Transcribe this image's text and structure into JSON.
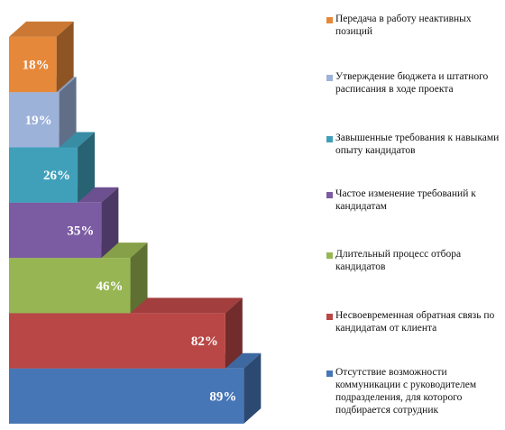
{
  "chart_data": {
    "type": "bar",
    "orientation": "horizontal",
    "style": "3d-stacked-pyramid",
    "title": "",
    "xlabel": "",
    "ylabel": "",
    "xlim": [
      0,
      100
    ],
    "grid": false,
    "legend_position": "right",
    "categories": [
      "Передача в работу неактивных позиций",
      "Утверждение бюджета и штатного расписания в ходе проекта",
      "Завышенные требования к навыками опыту кандидатов",
      "Частое изменение требований к кандидатам",
      "Длительный процесс отбора кандидатов",
      "Несвоевременная обратная связь по кандидатам от клиента",
      "Отсутствие возможности коммуникации с руководителем подразделения, для которого подбирается сотрудник"
    ],
    "values": [
      18,
      19,
      26,
      35,
      46,
      82,
      89
    ],
    "data_labels": [
      "18%",
      "19%",
      "26%",
      "35%",
      "46%",
      "82%",
      "89%"
    ],
    "colors": [
      "#E6883A",
      "#9DB2D9",
      "#40A0BA",
      "#7B5BA2",
      "#97B653",
      "#B84745",
      "#4776B6"
    ]
  },
  "legend": {
    "items": [
      {
        "label": "Передача в работу неактивных позиций",
        "color": "#E6883A"
      },
      {
        "label": "Утверждение бюджета и штатного расписания в ходе проекта",
        "color": "#9DB2D9"
      },
      {
        "label": "Завышенные требования к навыками опыту кандидатов",
        "color": "#40A0BA"
      },
      {
        "label": "Частое изменение требований к кандидатам",
        "color": "#7B5BA2"
      },
      {
        "label": "Длительный процесс отбора кандидатов",
        "color": "#97B653"
      },
      {
        "label": "Несвоевременная обратная связь по кандидатам от клиента",
        "color": "#B84745"
      },
      {
        "label": "Отсутствие возможности коммуникации с руководителем подразделения, для которого подбирается сотрудник",
        "color": "#4776B6"
      }
    ]
  }
}
